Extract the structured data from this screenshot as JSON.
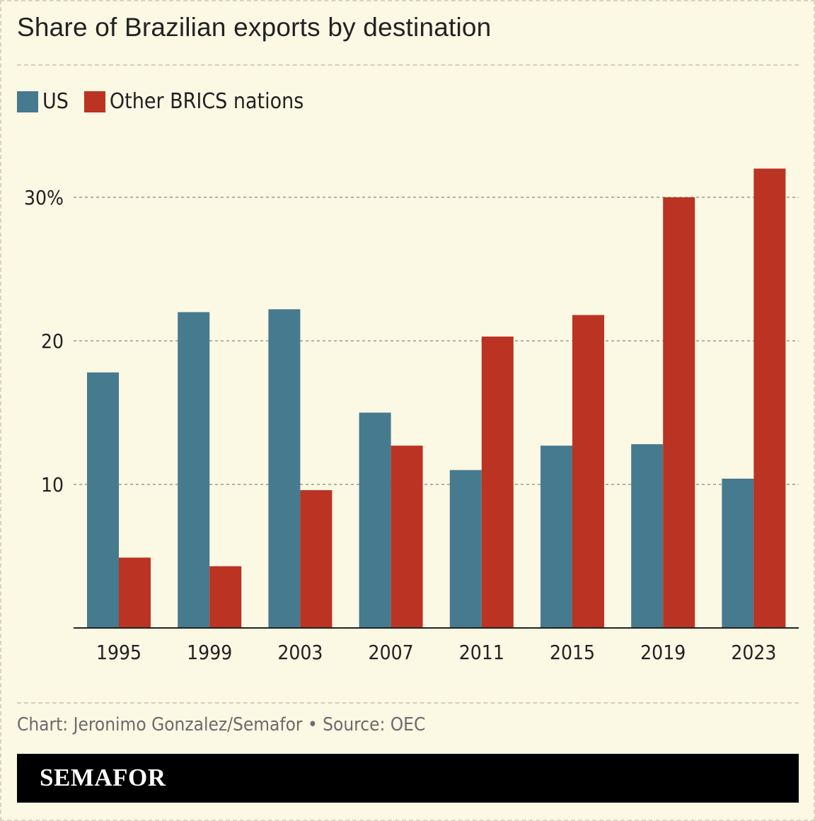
{
  "colors": {
    "us": "#467a8f",
    "brics": "#bb3322",
    "background": "#fbf8e4"
  },
  "chart_data": {
    "type": "bar",
    "title": "Share of Brazilian exports by destination",
    "categories": [
      "1995",
      "1999",
      "2003",
      "2007",
      "2011",
      "2015",
      "2019",
      "2023"
    ],
    "series": [
      {
        "name": "US",
        "color": "#467a8f",
        "values": [
          17.8,
          22.0,
          22.2,
          15.0,
          11.0,
          12.7,
          12.8,
          10.4
        ]
      },
      {
        "name": "Other BRICS nations",
        "color": "#bb3322",
        "values": [
          4.9,
          4.3,
          9.6,
          12.7,
          20.3,
          21.8,
          30.0,
          32.0
        ]
      }
    ],
    "yticks": [
      {
        "value": 10,
        "label": "10"
      },
      {
        "value": 20,
        "label": "20"
      },
      {
        "value": 30,
        "label": "30%"
      }
    ],
    "ylim": [
      0,
      33
    ],
    "xlabel": "",
    "ylabel": "",
    "grid": true,
    "legend": "top-left"
  },
  "footer": {
    "credit": "Chart: Jeronimo Gonzalez/Semafor • Source: OEC",
    "brand": "SEMAFOR"
  }
}
